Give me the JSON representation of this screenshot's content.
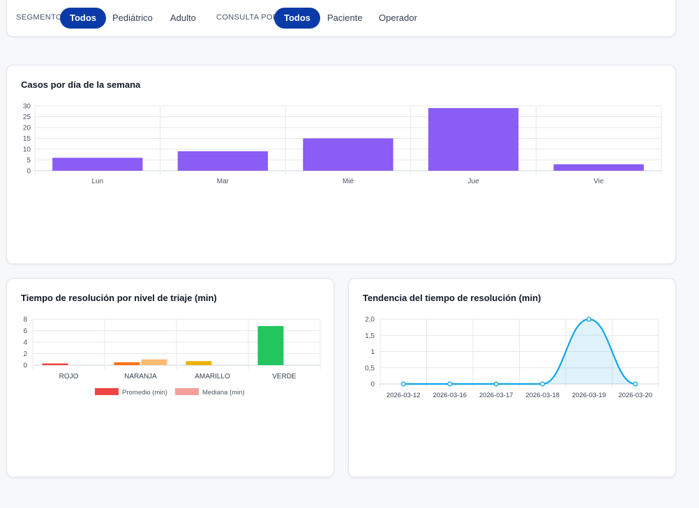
{
  "filters": {
    "segment_label": "SEGMENTO:",
    "segment_options": [
      "Todos",
      "Pediátrico",
      "Adulto"
    ],
    "segment_selected": "Todos",
    "consult_label": "CONSULTA POR:",
    "consult_options": [
      "Todos",
      "Paciente",
      "Operador"
    ],
    "consult_selected": "Todos",
    "active_color": "#0a3aa8"
  },
  "charts": {
    "weekday": {
      "title": "Casos por día de la semana"
    },
    "triage": {
      "title": "Tiempo de resolución por nivel de triaje (min)"
    },
    "trend": {
      "title": "Tendencia del tiempo de resolución (min)"
    }
  },
  "chart_data": [
    {
      "type": "bar",
      "categories": [
        "Lun",
        "Mar",
        "Mié",
        "Jue",
        "Vie"
      ],
      "values": [
        6,
        9,
        15,
        29,
        3
      ],
      "ylim": [
        0,
        30
      ],
      "yticks": [
        "0",
        "5",
        "10",
        "15",
        "20",
        "25",
        "30"
      ],
      "color": "#8b5cf6",
      "grid": true
    },
    {
      "type": "bar",
      "categories": [
        "ROJO",
        "NARANJA",
        "AMARILLO",
        "VERDE"
      ],
      "series": [
        {
          "name": "Promedio (min)",
          "values": [
            0.3,
            0.5,
            0.7,
            6.8
          ],
          "colors": [
            "#ef4444",
            "#f97316",
            "#eab308",
            "#22c55e"
          ]
        },
        {
          "name": "Mediana (min)",
          "values": [
            0,
            1.0,
            0,
            0
          ],
          "colors": [
            "#fca5a5",
            "#fdba74",
            "#fde047",
            "#86efac"
          ]
        }
      ],
      "legend_colors": [
        "#ef4444",
        "#f4a09a"
      ],
      "ylim": [
        0,
        8
      ],
      "yticks": [
        "0",
        "2",
        "4",
        "6",
        "8"
      ],
      "legend": "bottom",
      "grid": true
    },
    {
      "type": "area",
      "x": [
        "2026-03-12",
        "2026-03-16",
        "2026-03-17",
        "2026-03-18",
        "2026-03-19",
        "2026-03-20"
      ],
      "values": [
        0,
        0,
        0,
        0,
        2.0,
        0
      ],
      "ylim": [
        0,
        2
      ],
      "yticks": [
        "0",
        "0,5",
        "1",
        "1,5",
        "2,0"
      ],
      "color": "#0ea5e9",
      "grid": true
    }
  ]
}
